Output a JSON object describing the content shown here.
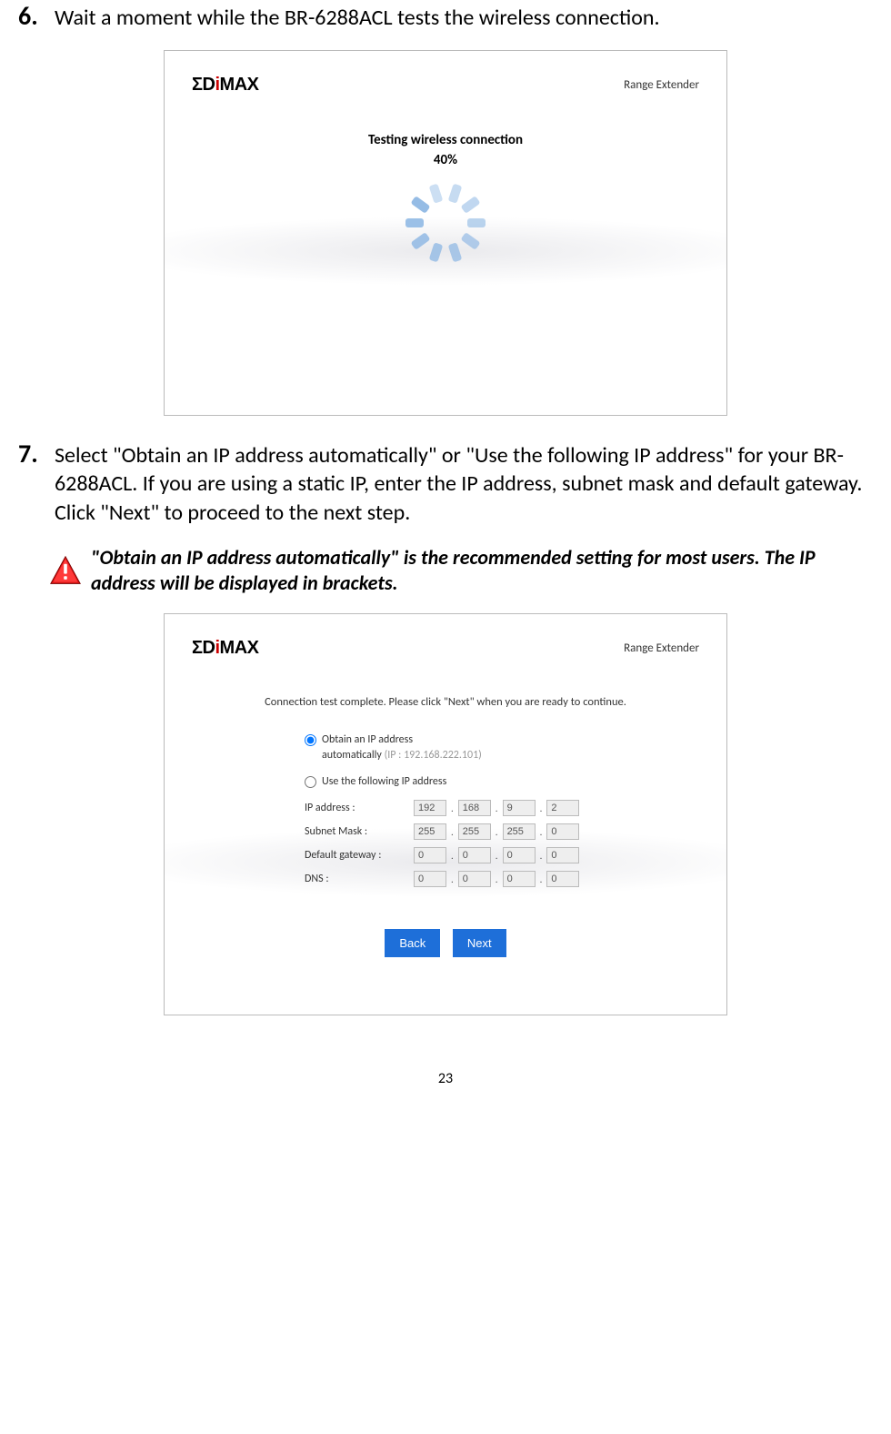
{
  "step6": {
    "num": "6.",
    "text": "Wait a moment while the BR-6288ACL tests the wireless connection."
  },
  "step7": {
    "num": "7.",
    "text": "Select \"Obtain an IP address automatically\" or \"Use the following IP address\" for your BR-6288ACL. If you are using a static IP, enter the IP address, subnet mask and default gateway. Click \"Next\" to proceed to the next step."
  },
  "note": "\"Obtain an IP address automatically\" is the recommended setting for most users. The IP address will be displayed in brackets.",
  "logo": {
    "pre": "Σ",
    "mid1": "D",
    "i": "i",
    "mid2": "MAX"
  },
  "range_ext": "Range Extender",
  "panel1": {
    "testing_label": "Testing wireless connection",
    "percent": "40%",
    "spinner_color": "#8fb8e4"
  },
  "panel2": {
    "conn_msg": "Connection test complete. Please click \"Next\" when you are ready to continue.",
    "radio_auto": "Obtain an IP address",
    "radio_auto_line2": "automatically",
    "radio_auto_hint": "(IP : 192.168.222.101)",
    "radio_static": "Use the following IP address",
    "rows": [
      {
        "label": "IP address :",
        "octets": [
          "192",
          "168",
          "9",
          "2"
        ]
      },
      {
        "label": "Subnet Mask :",
        "octets": [
          "255",
          "255",
          "255",
          "0"
        ]
      },
      {
        "label": "Default gateway :",
        "octets": [
          "0",
          "0",
          "0",
          "0"
        ]
      },
      {
        "label": "DNS :",
        "octets": [
          "0",
          "0",
          "0",
          "0"
        ]
      }
    ],
    "back": "Back",
    "next": "Next"
  },
  "page_number": "23",
  "colors": {
    "button_bg": "#1e6fd9",
    "logo_accent": "#c00"
  }
}
